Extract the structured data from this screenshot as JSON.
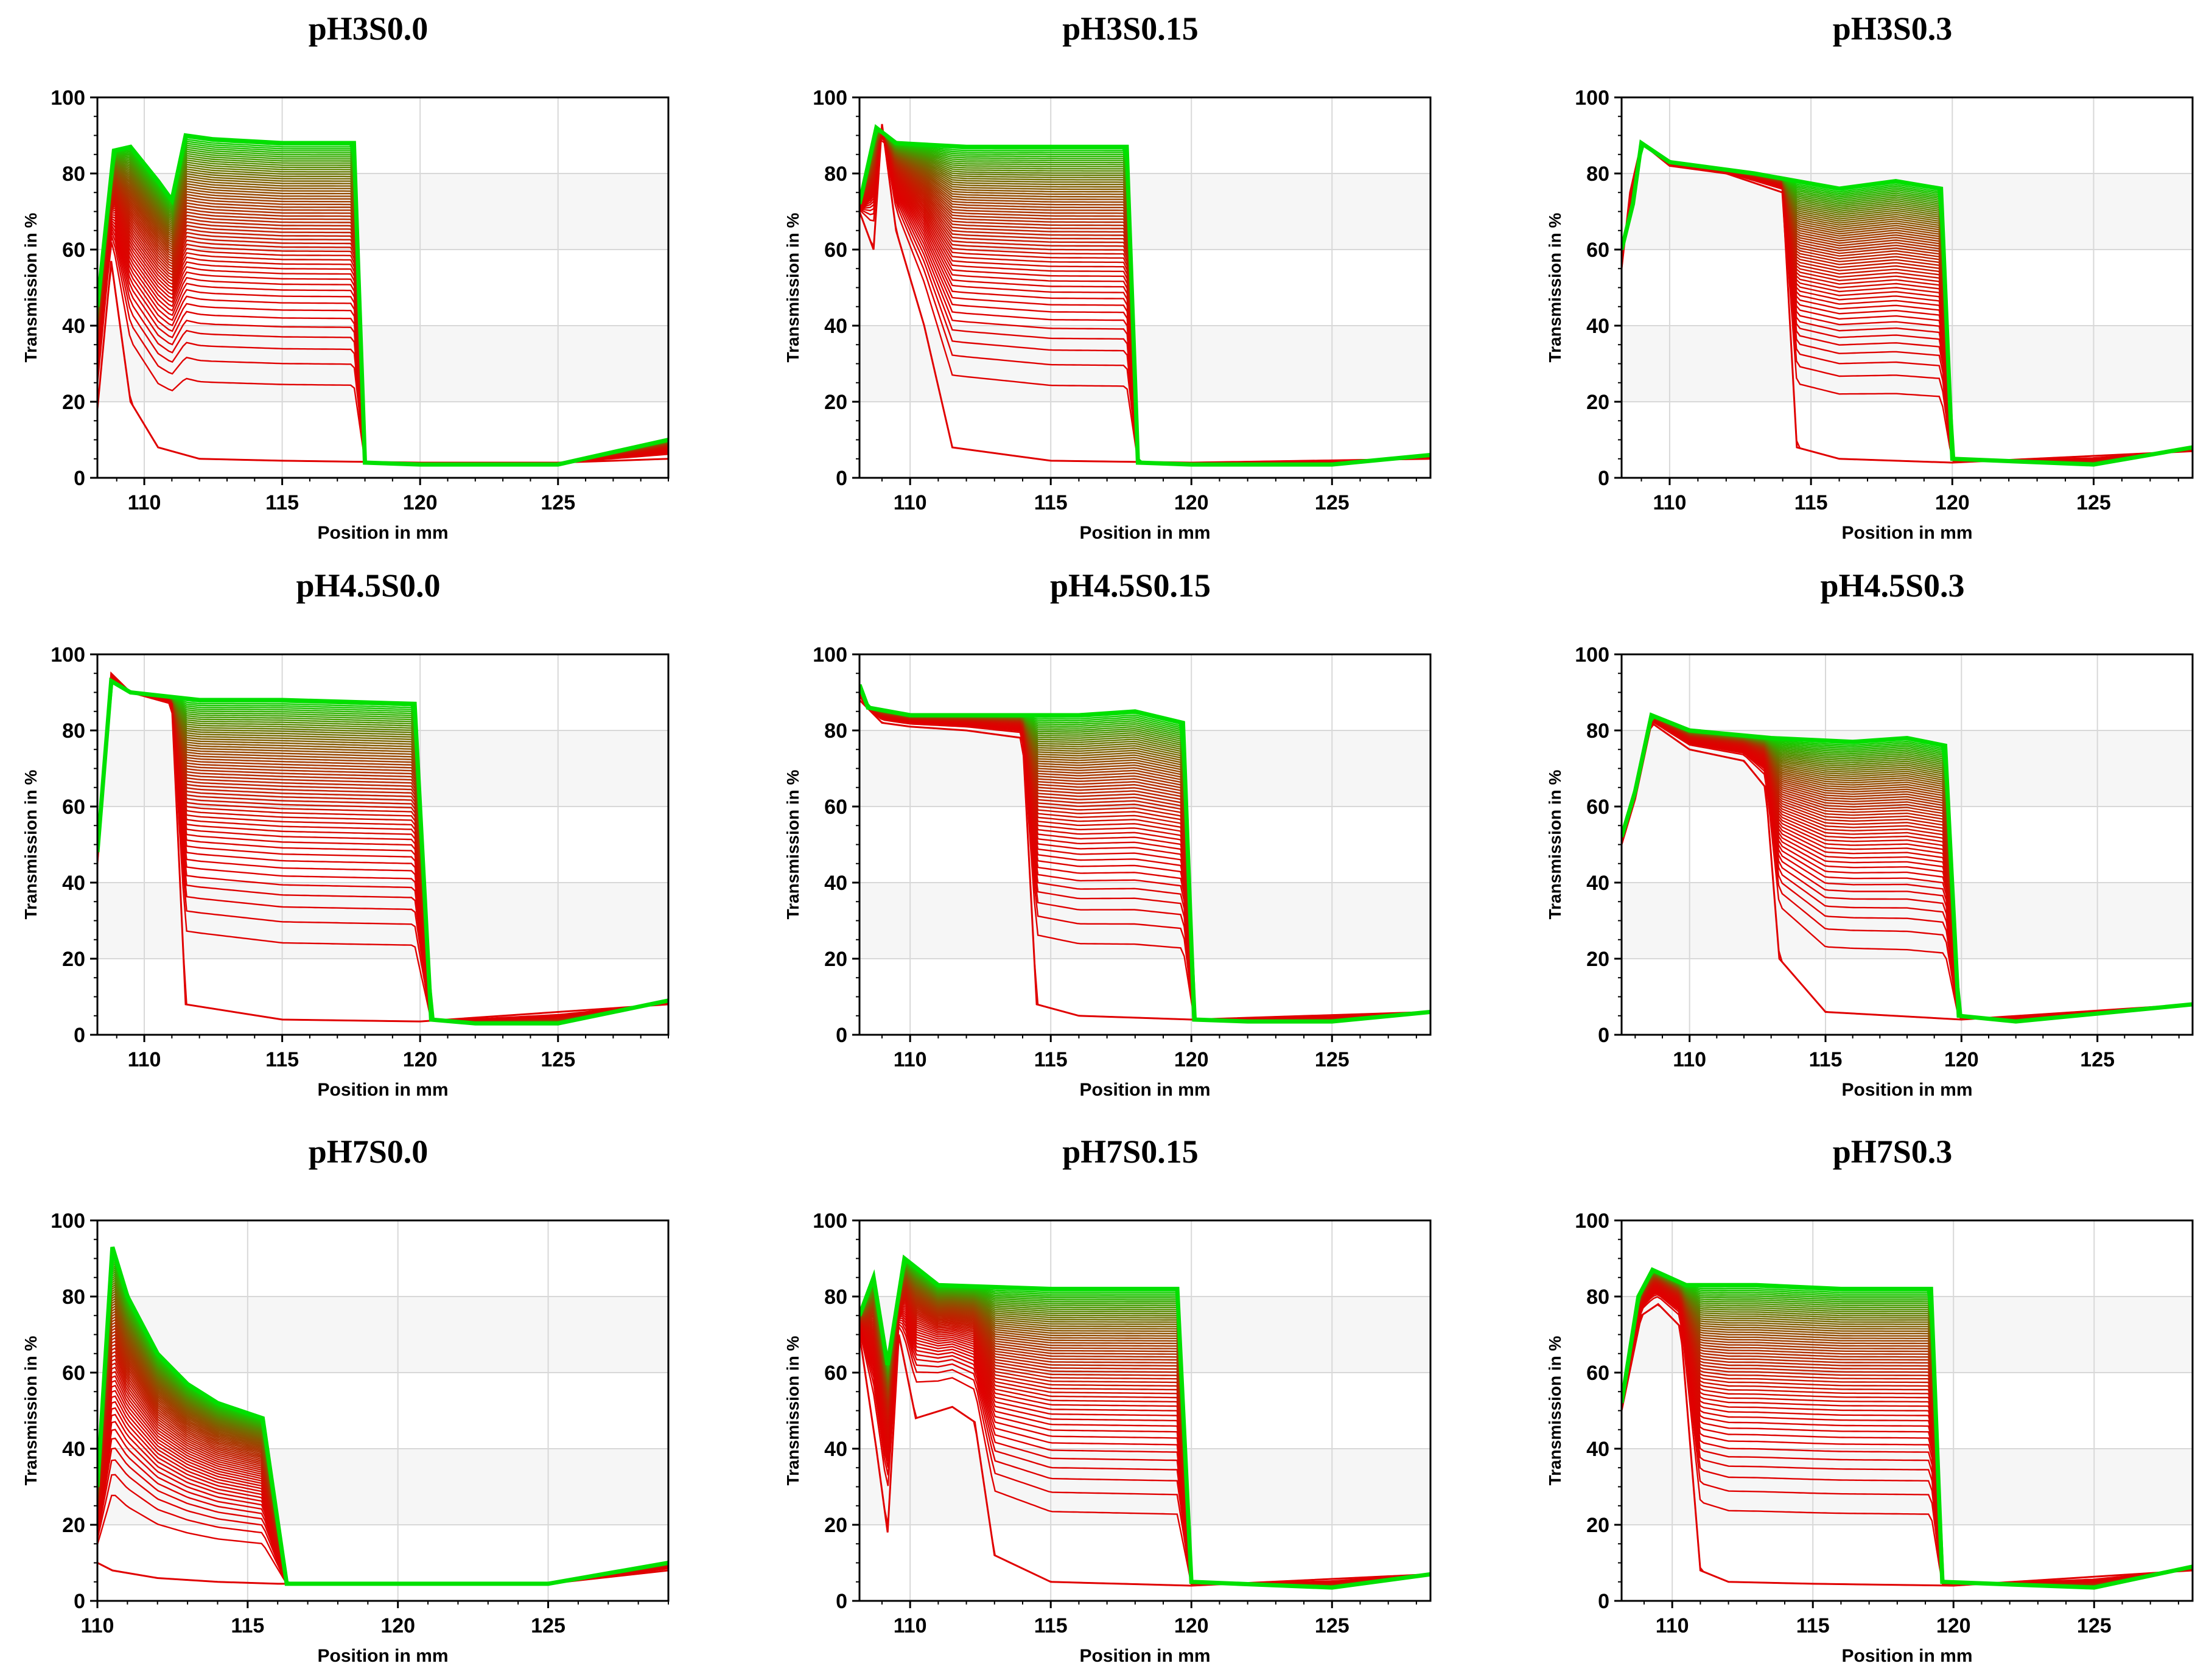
{
  "figure": {
    "colors": {
      "early": "#e00000",
      "late": "#00e000",
      "grid": "#d8d8d8",
      "plot_bg": "#ffffff",
      "band_bg": "#f6f6f6",
      "frame": "#000000"
    }
  },
  "chart_data": [
    {
      "type": "line",
      "title": "pH3S0.0",
      "xlabel": "Position in mm",
      "ylabel": "Transmission in %",
      "xlim": [
        108.3,
        129
      ],
      "ylim": [
        0,
        100
      ],
      "xticks": [
        110,
        115,
        120,
        125
      ],
      "yticks": [
        0,
        20,
        40,
        60,
        80,
        100
      ],
      "profile": "pH3S0.0",
      "series": [
        {
          "name": "first profile",
          "x": [
            108.3,
            108.8,
            109.5,
            110.5,
            112,
            115,
            120,
            125,
            129
          ],
          "y": [
            18,
            57,
            20,
            8,
            5,
            4.5,
            4,
            4,
            5
          ]
        },
        {
          "name": "final profile",
          "x": [
            108.3,
            108.9,
            109.5,
            110.5,
            111,
            111.5,
            112.5,
            115,
            117.6,
            118,
            120,
            125,
            129
          ],
          "y": [
            45,
            86,
            87,
            78,
            73,
            90,
            89,
            88,
            88,
            4,
            3.5,
            3.5,
            10
          ]
        }
      ]
    },
    {
      "type": "line",
      "title": "pH3S0.15",
      "xlabel": "Position in mm",
      "ylabel": "Transmission in %",
      "xlim": [
        108.2,
        128.5
      ],
      "ylim": [
        0,
        100
      ],
      "xticks": [
        110,
        115,
        120,
        125
      ],
      "yticks": [
        0,
        20,
        40,
        60,
        80,
        100
      ],
      "profile": "pH3S0.15",
      "series": [
        {
          "name": "first profile",
          "x": [
            108.2,
            108.7,
            109,
            109.5,
            110.5,
            111.5,
            115,
            120,
            128.5
          ],
          "y": [
            70,
            60,
            93,
            65,
            40,
            8,
            4.5,
            4,
            5
          ]
        },
        {
          "name": "final profile",
          "x": [
            108.2,
            108.8,
            109.5,
            112,
            115,
            117.7,
            118.1,
            120,
            125,
            128.5
          ],
          "y": [
            72,
            92,
            88,
            87,
            87,
            87,
            4,
            3.5,
            3.5,
            6
          ]
        }
      ]
    },
    {
      "type": "line",
      "title": "pH3S0.3",
      "xlabel": "Position in mm",
      "ylabel": "Transmission in %",
      "xlim": [
        108.3,
        128.5
      ],
      "ylim": [
        0,
        100
      ],
      "xticks": [
        110,
        115,
        120,
        125
      ],
      "yticks": [
        0,
        20,
        40,
        60,
        80,
        100
      ],
      "profile": "pH3S0.3",
      "series": [
        {
          "name": "first profile",
          "x": [
            108.3,
            108.6,
            109,
            110,
            112,
            114,
            114.5,
            116,
            120,
            128.5
          ],
          "y": [
            55,
            75,
            88,
            82,
            80,
            75,
            8,
            5,
            4,
            7
          ]
        },
        {
          "name": "final profile",
          "x": [
            108.3,
            108.7,
            109,
            110,
            113,
            116,
            118,
            119.6,
            120,
            125,
            128.5
          ],
          "y": [
            60,
            72,
            88,
            83,
            80,
            76,
            78,
            76,
            5,
            3.5,
            8
          ]
        }
      ]
    },
    {
      "type": "line",
      "title": "pH4.5S0.0",
      "xlabel": "Position in mm",
      "ylabel": "Transmission in %",
      "xlim": [
        108.3,
        129
      ],
      "ylim": [
        0,
        100
      ],
      "xticks": [
        110,
        115,
        120,
        125
      ],
      "yticks": [
        0,
        20,
        40,
        60,
        80,
        100
      ],
      "profile": "pH4.5S0.0",
      "series": [
        {
          "name": "first profile",
          "x": [
            108.3,
            108.8,
            109.5,
            110.5,
            111,
            111.5,
            115,
            120,
            129
          ],
          "y": [
            45,
            95,
            90,
            88,
            87,
            8,
            4,
            3.5,
            8
          ]
        },
        {
          "name": "final profile",
          "x": [
            108.3,
            108.8,
            109.5,
            112,
            115,
            119.8,
            120.4,
            122,
            125,
            129
          ],
          "y": [
            48,
            93,
            90,
            88,
            88,
            87,
            4,
            3,
            3,
            9
          ]
        }
      ]
    },
    {
      "type": "line",
      "title": "pH4.5S0.15",
      "xlabel": "Position in mm",
      "ylabel": "Transmission in %",
      "xlim": [
        108.2,
        128.5
      ],
      "ylim": [
        0,
        100
      ],
      "xticks": [
        110,
        115,
        120,
        125
      ],
      "yticks": [
        0,
        20,
        40,
        60,
        80,
        100
      ],
      "profile": "pH4.5S0.15",
      "series": [
        {
          "name": "first profile",
          "x": [
            108.2,
            109,
            110,
            112,
            114,
            114.5,
            116,
            120,
            128.5
          ],
          "y": [
            88,
            82,
            81,
            80,
            78,
            8,
            5,
            4,
            6
          ]
        },
        {
          "name": "final profile",
          "x": [
            108.2,
            108.5,
            110,
            113,
            116,
            118,
            119.7,
            120.1,
            122,
            125,
            128.5
          ],
          "y": [
            92,
            86,
            84,
            84,
            84,
            85,
            82,
            4,
            3.5,
            3.5,
            6
          ]
        }
      ]
    },
    {
      "type": "line",
      "title": "pH4.5S0.3",
      "xlabel": "Position in mm",
      "ylabel": "Transmission in %",
      "xlim": [
        107.5,
        128.5
      ],
      "ylim": [
        0,
        100
      ],
      "xticks": [
        110,
        115,
        120,
        125
      ],
      "yticks": [
        0,
        20,
        40,
        60,
        80,
        100
      ],
      "profile": "pH4.5S0.3",
      "series": [
        {
          "name": "first profile",
          "x": [
            107.5,
            108,
            108.6,
            110,
            112,
            112.8,
            113.3,
            115,
            120,
            128.5
          ],
          "y": [
            50,
            62,
            82,
            75,
            72,
            65,
            20,
            6,
            4,
            8
          ]
        },
        {
          "name": "final profile",
          "x": [
            107.5,
            108,
            108.6,
            110,
            113,
            116,
            118,
            119.4,
            119.9,
            122,
            128.5
          ],
          "y": [
            52,
            64,
            84,
            80,
            78,
            77,
            78,
            76,
            5,
            3.5,
            8
          ]
        }
      ]
    },
    {
      "type": "line",
      "title": "pH7S0.0",
      "xlabel": "Position in mm",
      "ylabel": "Transmission in %",
      "xlim": [
        110,
        129
      ],
      "ylim": [
        0,
        100
      ],
      "xticks": [
        110,
        115,
        120,
        125
      ],
      "yticks": [
        0,
        20,
        40,
        60,
        80,
        100
      ],
      "profile": "pH7S0.0",
      "series": [
        {
          "name": "first profile",
          "x": [
            110,
            110.5,
            112,
            114,
            116,
            120,
            125,
            129
          ],
          "y": [
            10,
            8,
            6,
            5,
            4.5,
            4.5,
            4.5,
            8
          ]
        },
        {
          "name": "final profile",
          "x": [
            110,
            110.5,
            111,
            112,
            113,
            114,
            115.5,
            116.3,
            120,
            125,
            129
          ],
          "y": [
            30,
            93,
            80,
            65,
            57,
            52,
            48,
            4.5,
            4.5,
            4.5,
            10
          ]
        }
      ]
    },
    {
      "type": "line",
      "title": "pH7S0.15",
      "xlabel": "Position in mm",
      "ylabel": "Transmission in %",
      "xlim": [
        108.2,
        128.5
      ],
      "ylim": [
        0,
        100
      ],
      "xticks": [
        110,
        115,
        120,
        125
      ],
      "yticks": [
        0,
        20,
        40,
        60,
        80,
        100
      ],
      "profile": "pH7S0.15",
      "series": [
        {
          "name": "first profile",
          "x": [
            108.2,
            108.8,
            109.2,
            109.6,
            110.2,
            111.5,
            112.3,
            113,
            115,
            120,
            128.5
          ],
          "y": [
            70,
            40,
            18,
            70,
            48,
            51,
            47,
            12,
            5,
            4,
            7
          ]
        },
        {
          "name": "final profile",
          "x": [
            108.2,
            108.7,
            109.2,
            109.8,
            111,
            115,
            119.5,
            120,
            125,
            128.5
          ],
          "y": [
            75,
            85,
            62,
            90,
            83,
            82,
            82,
            5,
            3.5,
            7
          ]
        }
      ]
    },
    {
      "type": "line",
      "title": "pH7S0.3",
      "xlabel": "Position in mm",
      "ylabel": "Transmission in %",
      "xlim": [
        108.2,
        128.5
      ],
      "ylim": [
        0,
        100
      ],
      "xticks": [
        110,
        115,
        120,
        125
      ],
      "yticks": [
        0,
        20,
        40,
        60,
        80,
        100
      ],
      "profile": "pH7S0.3",
      "series": [
        {
          "name": "first profile",
          "x": [
            108.2,
            108.9,
            109.5,
            110.3,
            111,
            112,
            115,
            120,
            128.5
          ],
          "y": [
            50,
            75,
            78,
            72,
            8,
            5,
            4.5,
            4,
            8
          ]
        },
        {
          "name": "final profile",
          "x": [
            108.2,
            108.8,
            109.3,
            110.5,
            113,
            116,
            119.2,
            119.6,
            125,
            128.5
          ],
          "y": [
            52,
            80,
            87,
            83,
            83,
            82,
            82,
            5,
            3.5,
            9
          ]
        }
      ]
    }
  ]
}
